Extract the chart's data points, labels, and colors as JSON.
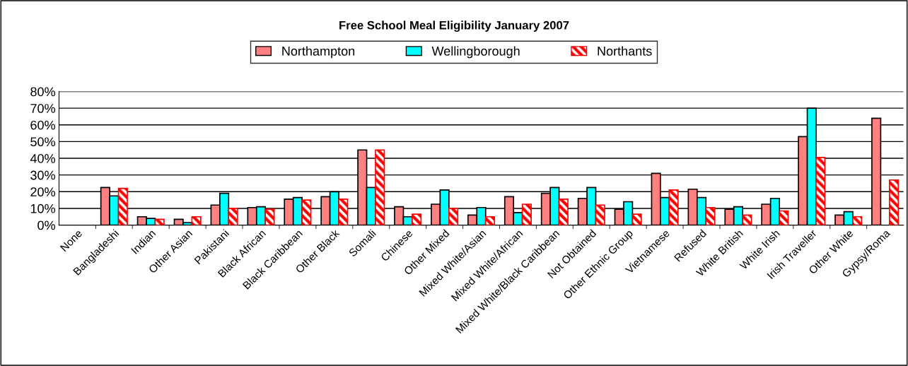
{
  "chart_data": {
    "type": "bar",
    "title": "Free School Meal Eligibility January 2007",
    "categories": [
      "None",
      "Bangladeshi",
      "Indian",
      "Other Asian",
      "Pakistani",
      "Black African",
      "Black Caribbean",
      "Other Black",
      "Somali",
      "Chinese",
      "Other Mixed",
      "Mixed White/Asian",
      "Mixed White/African",
      "Mixed White/Black Caribbean",
      "Not Obtained",
      "Other Ethnic Group",
      "Vietnamese",
      "Refused",
      "White British",
      "White Irish",
      "Irish Traveller",
      "Other White",
      "Gypsy/Roma"
    ],
    "series": [
      {
        "name": "Northampton",
        "color": "#ff8080",
        "values": [
          null,
          22.5,
          5,
          3.5,
          12,
          10.5,
          15.5,
          17,
          45,
          11,
          12.5,
          6,
          17,
          19,
          16,
          9.5,
          31,
          21.5,
          9.5,
          12.5,
          53,
          6,
          64
        ]
      },
      {
        "name": "Wellingborough",
        "color": "#00ffff",
        "values": [
          null,
          17.5,
          4,
          1.5,
          19,
          11,
          16.5,
          20,
          22.5,
          5,
          21,
          10.5,
          7.5,
          22.5,
          22.5,
          14,
          16.5,
          16.5,
          11,
          16,
          70,
          8,
          null
        ]
      },
      {
        "name": "Northants",
        "color": "#ff0000",
        "values": [
          null,
          22,
          3.5,
          5,
          10,
          9.5,
          15,
          15.5,
          45,
          6.5,
          10,
          5,
          12.5,
          15.5,
          12,
          6.5,
          21,
          10.5,
          6,
          8.5,
          40.5,
          5,
          27
        ]
      }
    ],
    "ylim": [
      0,
      80
    ],
    "yticks": [
      {
        "value": 0,
        "label": "0%"
      },
      {
        "value": 10,
        "label": "10%"
      },
      {
        "value": 20,
        "label": "20%"
      },
      {
        "value": 30,
        "label": "30%"
      },
      {
        "value": 40,
        "label": "40%"
      },
      {
        "value": 50,
        "label": "50%"
      },
      {
        "value": 60,
        "label": "60%"
      },
      {
        "value": 70,
        "label": "70%"
      },
      {
        "value": 80,
        "label": "80%"
      }
    ],
    "grid": "y",
    "legend": "top"
  }
}
